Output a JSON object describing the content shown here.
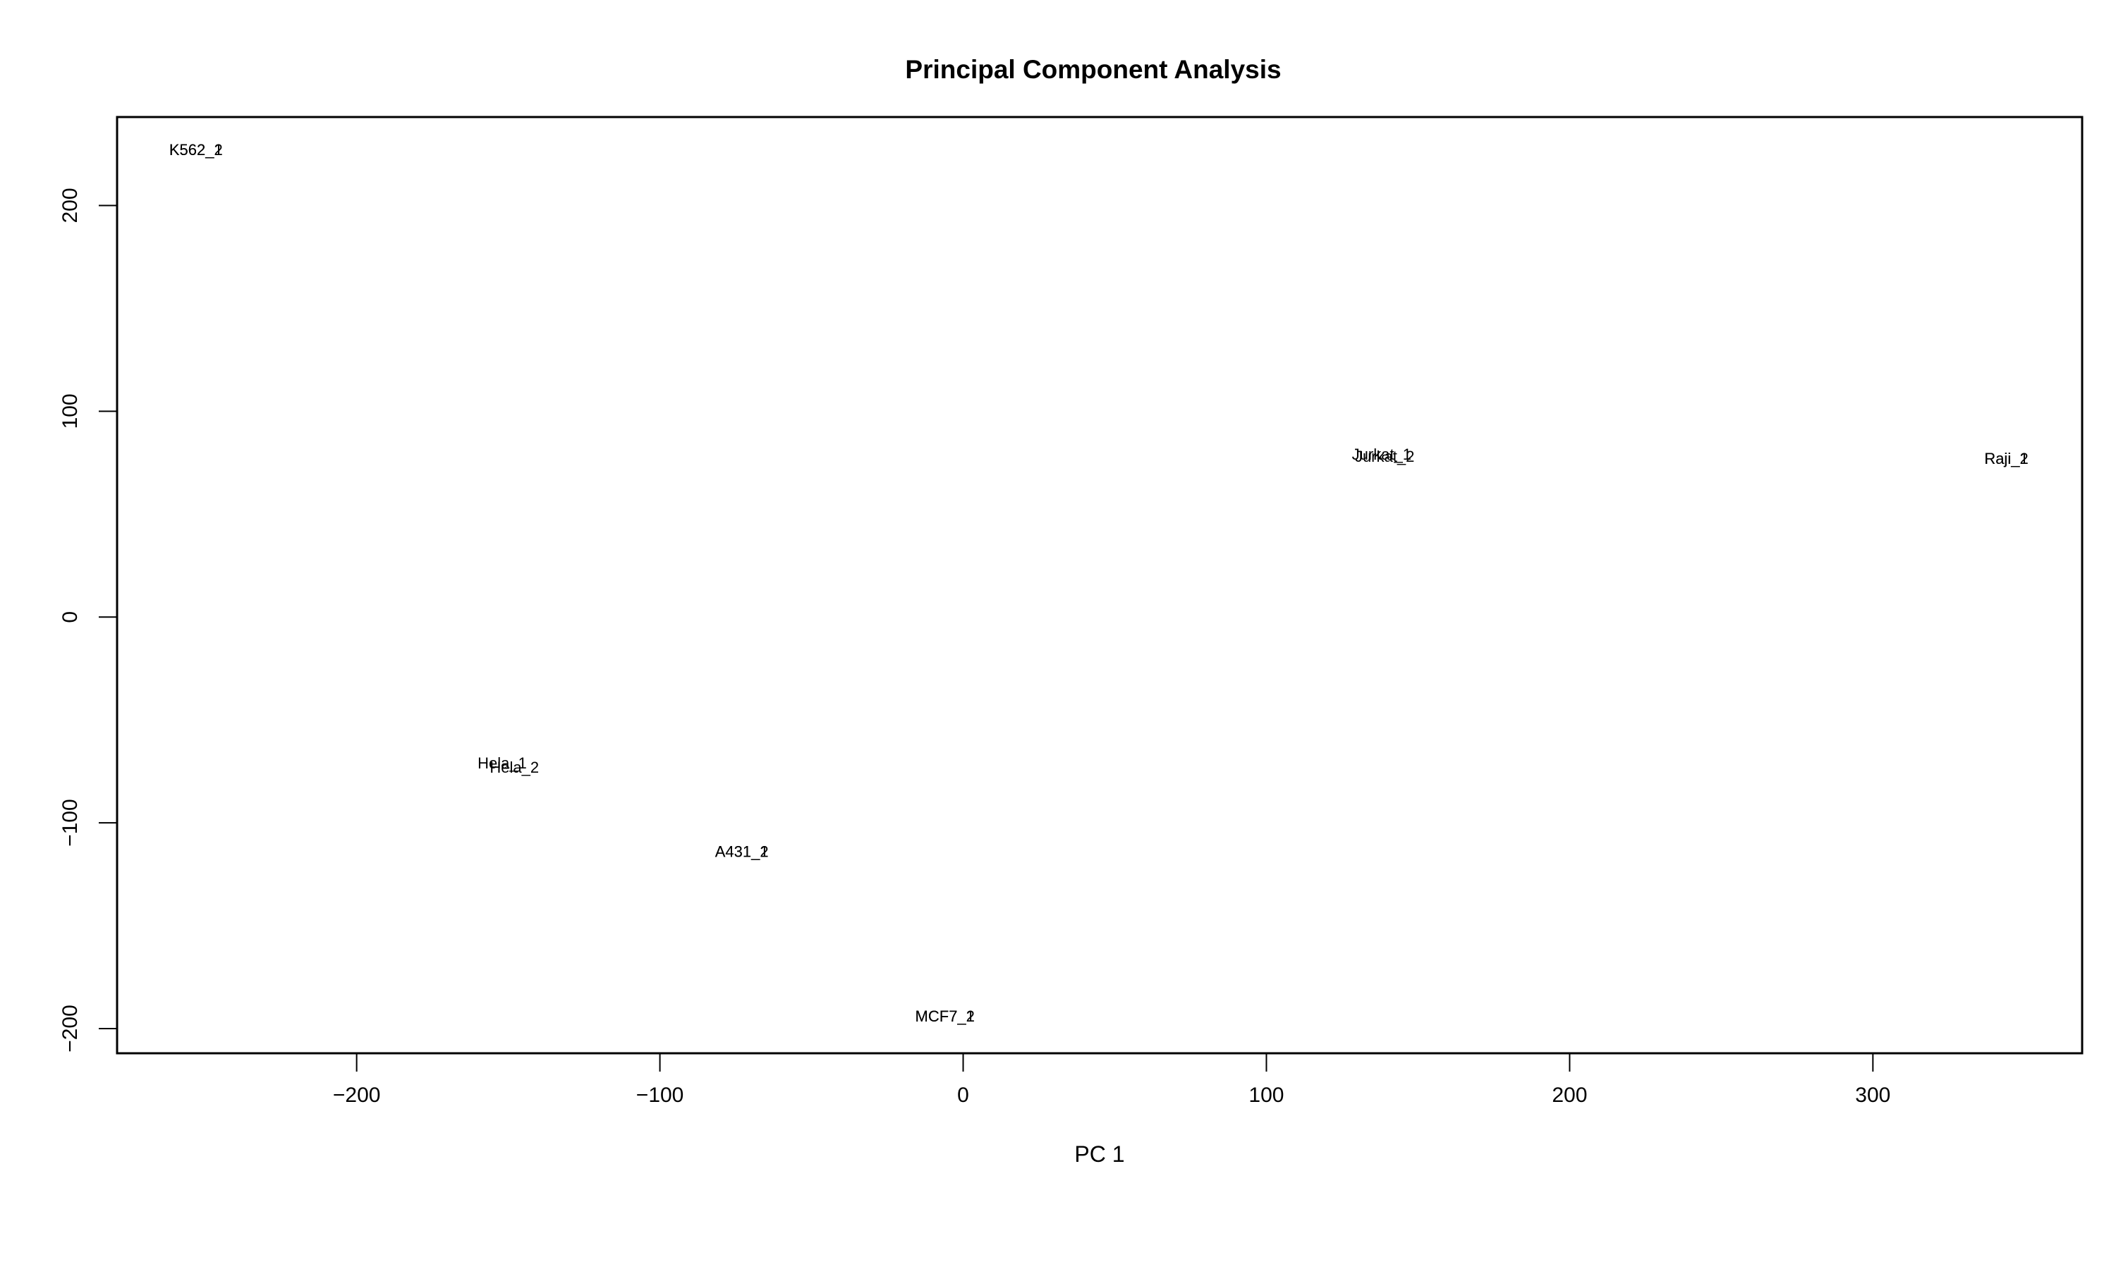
{
  "chart_data": {
    "type": "scatter",
    "title": "Principal Component Analysis",
    "xlabel": "PC 1",
    "ylabel": "",
    "xlim": [
      -279,
      369
    ],
    "ylim": [
      -212,
      243
    ],
    "xticks": [
      -200,
      -100,
      0,
      100,
      200,
      300
    ],
    "xtick_labels": [
      "−200",
      "−100",
      "0",
      "100",
      "200",
      "300"
    ],
    "yticks": [
      -200,
      -100,
      0,
      100,
      200
    ],
    "ytick_labels": [
      "−200",
      "−100",
      "0",
      "100",
      "200"
    ],
    "grid": false,
    "points": [
      {
        "label": "K562_1",
        "x": -253,
        "y": 227
      },
      {
        "label": "K562_2",
        "x": -253,
        "y": 227
      },
      {
        "label": "Hela_1",
        "x": -152,
        "y": -71
      },
      {
        "label": "Hela_2",
        "x": -148,
        "y": -73
      },
      {
        "label": "A431_1",
        "x": -73,
        "y": -114
      },
      {
        "label": "A431_2",
        "x": -73,
        "y": -114
      },
      {
        "label": "MCF7_1",
        "x": -6,
        "y": -194
      },
      {
        "label": "MCF7_2",
        "x": -6,
        "y": -194
      },
      {
        "label": "Jurkat_1",
        "x": 138,
        "y": 79
      },
      {
        "label": "Jurkat_2",
        "x": 139,
        "y": 78
      },
      {
        "label": "Raji_1",
        "x": 344,
        "y": 77
      },
      {
        "label": "Raji_2",
        "x": 344,
        "y": 77
      }
    ]
  }
}
